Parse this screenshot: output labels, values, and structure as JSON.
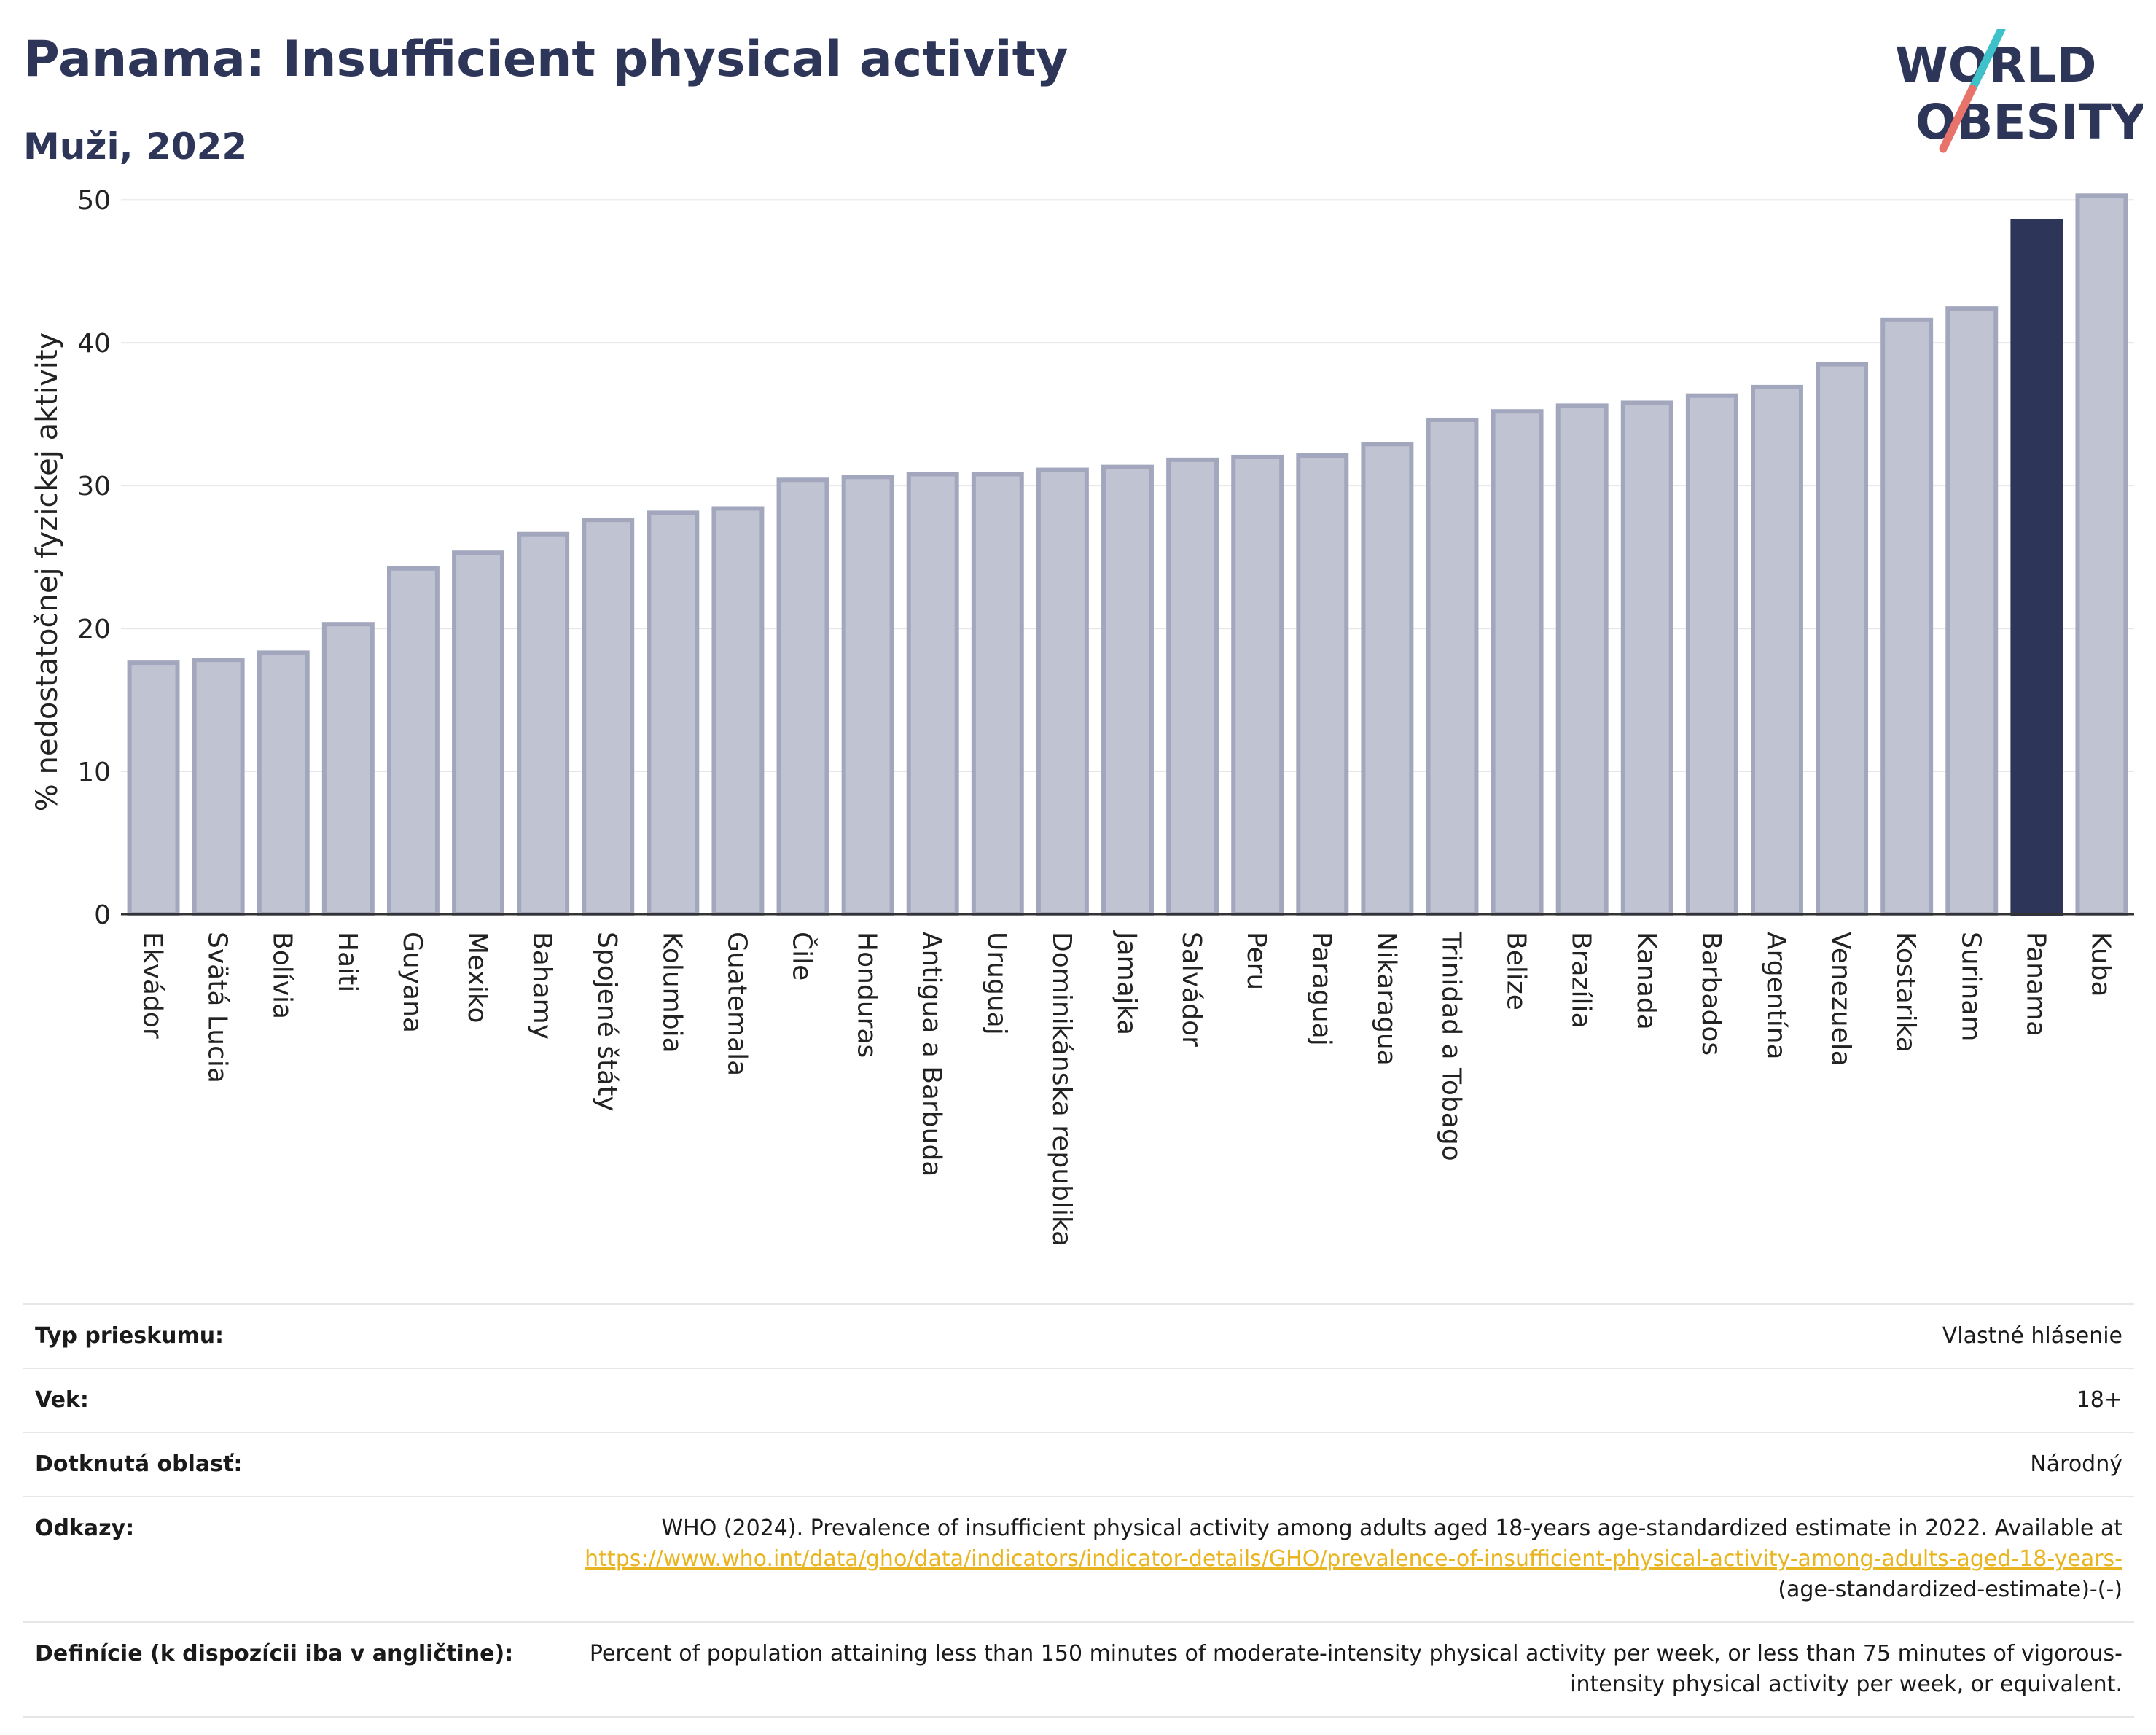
{
  "header": {
    "title": "Panama: Insufficient physical activity",
    "subtitle": "Muži, 2022"
  },
  "logo": {
    "line1": "WORLD",
    "line2": "OBESITY",
    "accent_teal": "#3ec1c9",
    "accent_coral": "#e8736a"
  },
  "chart_data": {
    "type": "bar",
    "ylabel": "% nedostatočnej fyzickej aktivity",
    "ylim": [
      0,
      50
    ],
    "yticks": [
      0,
      10,
      20,
      30,
      40,
      50
    ],
    "grid": true,
    "highlight": "Panama",
    "colors": {
      "bar": "#c0c3d1",
      "bar_edge": "#a2a7bd",
      "highlight": "#2d3559",
      "axis": "#333333",
      "grid": "#e6e6e6"
    },
    "categories": [
      "Ekvádor",
      "Svätá Lucia",
      "Bolívia",
      "Haiti",
      "Guyana",
      "Mexiko",
      "Bahamy",
      "Spojené štáty",
      "Kolumbia",
      "Guatemala",
      "Čile",
      "Honduras",
      "Antigua a Barbuda",
      "Uruguaj",
      "Dominikánska republika",
      "Jamajka",
      "Salvádor",
      "Peru",
      "Paraguaj",
      "Nikaragua",
      "Trinidad a Tobago",
      "Belize",
      "Brazília",
      "Kanada",
      "Barbados",
      "Argentína",
      "Venezuela",
      "Kostarika",
      "Surinam",
      "Panama",
      "Kuba"
    ],
    "values": [
      17.6,
      17.8,
      18.3,
      20.3,
      24.2,
      25.3,
      26.6,
      27.6,
      28.1,
      28.4,
      30.4,
      30.6,
      30.8,
      30.8,
      31.1,
      31.3,
      31.8,
      32.0,
      32.1,
      32.9,
      34.6,
      35.2,
      35.6,
      35.8,
      36.3,
      36.9,
      38.5,
      41.6,
      42.4,
      48.5,
      50.3
    ]
  },
  "info": {
    "rows": [
      {
        "key": "Typ prieskumu:",
        "value": "Vlastné hlásenie"
      },
      {
        "key": "Vek:",
        "value": "18+"
      },
      {
        "key": "Dotknutá oblasť:",
        "value": "Národný"
      }
    ],
    "references": {
      "key": "Odkazy:",
      "text": "WHO (2024). Prevalence of insufficient physical activity among adults aged 18-years age-standardized estimate in 2022. Available at",
      "link": "https://www.who.int/data/gho/data/indicators/indicator-details/GHO/prevalence-of-insufficient-physical-activity-among-adults-aged-18-years-",
      "after": "(age-standardized-estimate)-(-)"
    },
    "definitions": {
      "key": "Definície (k dispozícii iba v angličtine):",
      "value": "Percent of population attaining less than 150 minutes of moderate-intensity physical activity per week, or less than 75 minutes of vigorous-intensity physical activity per week, or equivalent."
    }
  }
}
